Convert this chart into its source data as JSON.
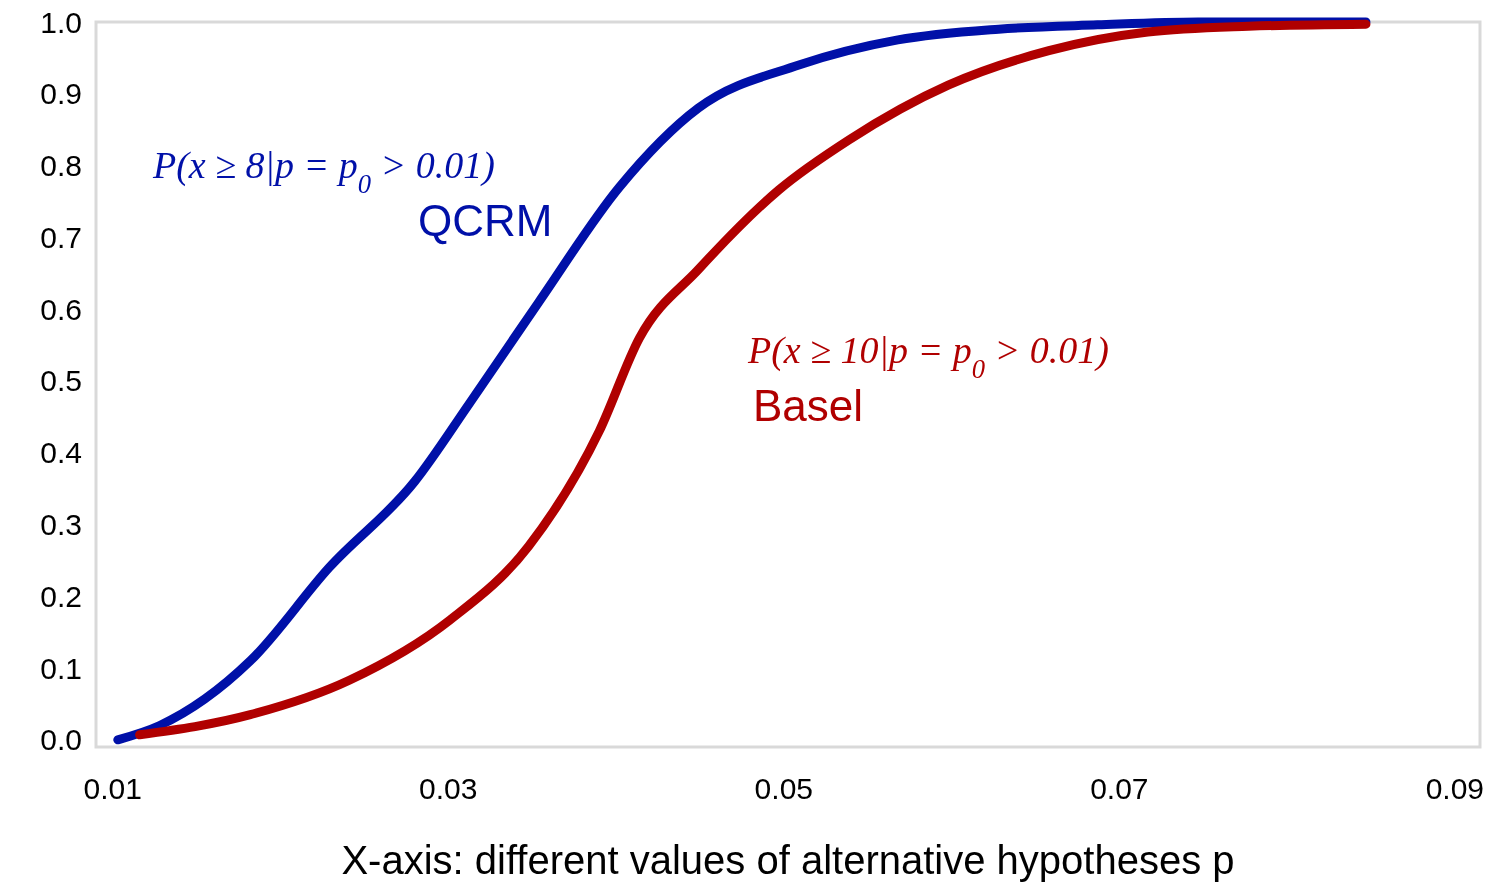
{
  "chart_data": {
    "type": "line",
    "xlabel": "X-axis: different values of alternative hypotheses p",
    "xlim": [
      0.009,
      0.0915
    ],
    "ylim": [
      -0.01,
      1.0
    ],
    "xticks": [
      0.01,
      0.03,
      0.05,
      0.07,
      0.09
    ],
    "yticks": [
      {
        "value": 0,
        "label": "0.0"
      },
      {
        "value": 0.1,
        "label": "0.1"
      },
      {
        "value": 0.2,
        "label": "0.2"
      },
      {
        "value": 0.3,
        "label": "0.3"
      },
      {
        "value": 0.4,
        "label": "0.4"
      },
      {
        "value": 0.5,
        "label": "0.5"
      },
      {
        "value": 0.6,
        "label": "0.6"
      },
      {
        "value": 0.7,
        "label": "0.7"
      },
      {
        "value": 0.8,
        "label": "0.8"
      },
      {
        "value": 0.9,
        "label": "0.9"
      },
      {
        "value": 1,
        "label": "1.0"
      }
    ],
    "grid": false,
    "marker": "none",
    "line_style": "solid",
    "annotations": [
      "P(x ≥ 8|p = p$_{0}$ > 0.01)",
      "P(x ≥ 10|p = p$_{0}$ > 0.01)"
    ],
    "series": [
      {
        "name": "QCRM",
        "color": "#0010a8",
        "x": [
          0.0103,
          0.0128,
          0.0182,
          0.0229,
          0.028,
          0.0313,
          0.0354,
          0.0402,
          0.0449,
          0.0509,
          0.0568,
          0.0628,
          0.0687,
          0.0747,
          0.0847
        ],
        "values": [
          0,
          0.02,
          0.11,
          0.24,
          0.36,
          0.47,
          0.61,
          0.77,
          0.88,
          0.94,
          0.975,
          0.99,
          0.996,
          1.0,
          1.0
        ]
      },
      {
        "name": "Basel",
        "color": "#b00000",
        "x": [
          0.0116,
          0.0182,
          0.0241,
          0.0301,
          0.0348,
          0.039,
          0.0414,
          0.0449,
          0.0497,
          0.0539,
          0.0598,
          0.0658,
          0.0717,
          0.0777,
          0.0847
        ],
        "values": [
          0.007,
          0.035,
          0.083,
          0.167,
          0.27,
          0.43,
          0.56,
          0.655,
          0.766,
          0.836,
          0.912,
          0.96,
          0.986,
          0.994,
          0.997
        ]
      }
    ]
  }
}
